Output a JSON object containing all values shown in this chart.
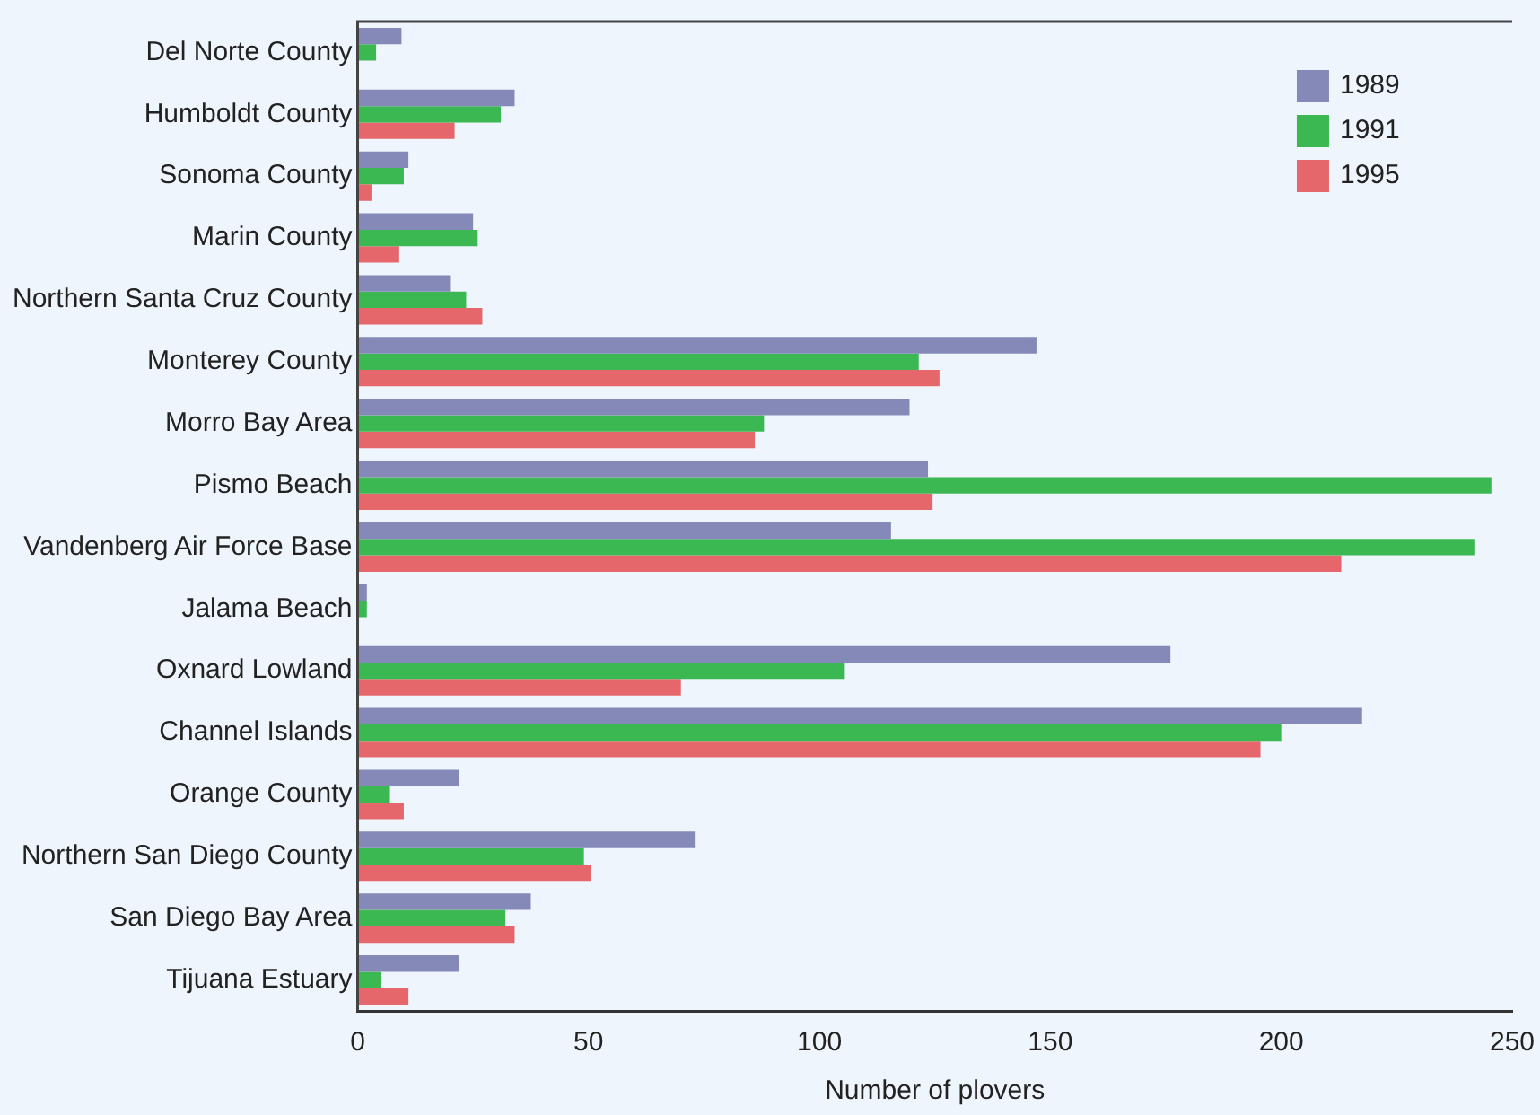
{
  "chart_data": {
    "type": "bar",
    "orientation": "horizontal",
    "xlabel": "Number of plovers",
    "categories": [
      "Del Norte County",
      "Humboldt County",
      "Sonoma County",
      "Marin County",
      "Northern Santa Cruz County",
      "Monterey County",
      "Morro Bay Area",
      "Pismo Beach",
      "Vandenberg Air Force Base",
      "Jalama Beach",
      "Oxnard Lowland",
      "Channel Islands",
      "Orange County",
      "Northern San Diego County",
      "San Diego Bay Area",
      "Tijuana Estuary"
    ],
    "series": [
      {
        "name": "1989",
        "color": "#8589b8",
        "values": [
          9.5,
          34,
          11,
          25,
          20,
          147,
          119.5,
          123.5,
          115.5,
          2,
          176,
          217.5,
          22,
          73,
          37.5,
          22
        ]
      },
      {
        "name": "1991",
        "color": "#3cb853",
        "values": [
          4,
          31,
          10,
          26,
          23.5,
          121.5,
          88,
          245.5,
          242,
          2,
          105.5,
          200,
          7,
          49,
          32,
          5
        ]
      },
      {
        "name": "1995",
        "color": "#e6676b",
        "values": [
          null,
          21,
          3,
          9,
          27,
          126,
          86,
          124.5,
          213,
          null,
          70,
          195.5,
          10,
          50.5,
          34,
          11
        ]
      }
    ],
    "xlim": [
      0,
      250
    ],
    "xticks": [
      0,
      50,
      100,
      150,
      200,
      250
    ],
    "grid": false,
    "legend": "top right"
  }
}
